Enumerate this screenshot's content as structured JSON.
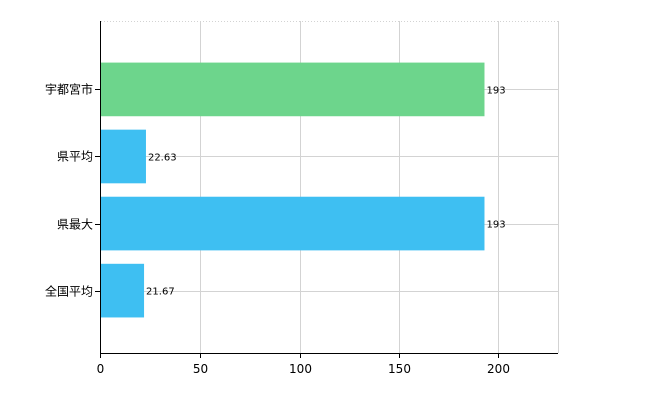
{
  "chart_data": {
    "type": "bar",
    "orientation": "horizontal",
    "categories": [
      "宇都宮市",
      "県平均",
      "県最大",
      "全国平均"
    ],
    "values": [
      193,
      22.63,
      193,
      21.67
    ],
    "value_labels": [
      "193",
      "22.63",
      "193",
      "21.67"
    ],
    "bar_colors": [
      "#6dd58c",
      "#3ebff2",
      "#3ebff2",
      "#3ebff2"
    ],
    "xlim": [
      0,
      230
    ],
    "x_ticks": [
      0,
      50,
      100,
      150,
      200
    ],
    "x_tick_labels": [
      "0",
      "50",
      "100",
      "150",
      "200"
    ],
    "title": "",
    "xlabel": "",
    "ylabel": "",
    "grid": true,
    "legend": "none"
  }
}
